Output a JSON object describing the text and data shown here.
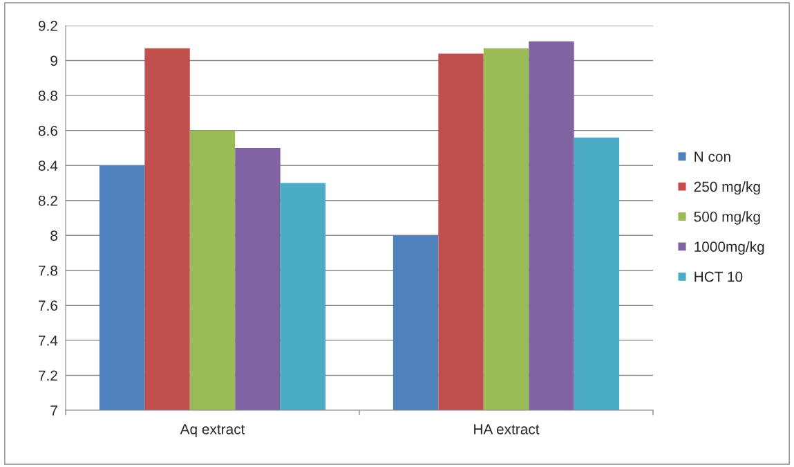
{
  "chart_data": {
    "type": "bar",
    "categories": [
      "Aq extract",
      "HA extract"
    ],
    "series": [
      {
        "name": "N con",
        "color": "#4f81bd",
        "values": [
          8.4,
          8.0
        ]
      },
      {
        "name": "250 mg/kg",
        "color": "#c0504d",
        "values": [
          9.07,
          9.04
        ]
      },
      {
        "name": "500 mg/kg",
        "color": "#9bbb59",
        "values": [
          8.6,
          9.07
        ]
      },
      {
        "name": "1000mg/kg",
        "color": "#8064a2",
        "values": [
          8.5,
          9.11
        ]
      },
      {
        "name": "HCT 10",
        "color": "#4bacc6",
        "values": [
          8.3,
          8.56
        ]
      }
    ],
    "ylim": [
      7,
      9.2
    ],
    "yticks": [
      7,
      7.2,
      7.4,
      7.6,
      7.8,
      8,
      8.2,
      8.4,
      8.6,
      8.8,
      9,
      9.2
    ],
    "grid": "y",
    "legend": "right"
  }
}
